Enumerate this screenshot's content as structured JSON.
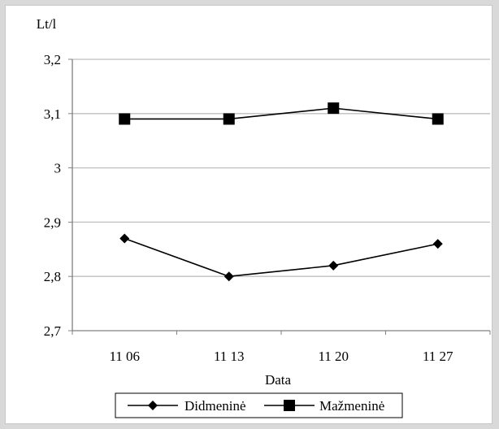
{
  "chart_data": {
    "type": "line",
    "ylabel": "Lt/l",
    "xlabel": "Data",
    "categories": [
      "11 06",
      "11 13",
      "11 20",
      "11 27"
    ],
    "ylim": [
      2.7,
      3.2
    ],
    "yticks": [
      "2,7",
      "2,8",
      "2,9",
      "3",
      "3,1",
      "3,2"
    ],
    "ytick_values": [
      2.7,
      2.8,
      2.9,
      3.0,
      3.1,
      3.2
    ],
    "grid": "horizontal",
    "legend_position": "bottom",
    "series": [
      {
        "name": "Didmeninė",
        "marker": "diamond",
        "values": [
          2.87,
          2.8,
          2.82,
          2.86
        ]
      },
      {
        "name": "Mažmeninė",
        "marker": "square",
        "values": [
          3.09,
          3.09,
          3.11,
          3.09
        ]
      }
    ],
    "colors": {
      "line": "#000000",
      "grid": "#bfbfbf",
      "axis": "#808080"
    }
  }
}
